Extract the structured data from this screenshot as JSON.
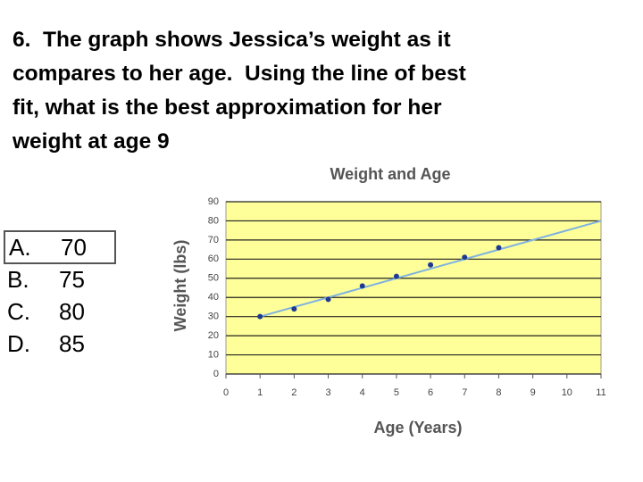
{
  "question_lines": [
    "6.  The graph shows Jessica’s weight as it",
    "compares to her age.  Using the line of best",
    "fit, what is the best approximation for her",
    "weight at age 9"
  ],
  "options": [
    {
      "letter": "A.",
      "text": "70"
    },
    {
      "letter": "B.",
      "text": "75"
    },
    {
      "letter": "C.",
      "text": "80"
    },
    {
      "letter": "D.",
      "text": "85"
    }
  ],
  "chart_data": {
    "type": "scatter",
    "title": "Weight and Age",
    "x_label": "Age (Years)",
    "y_label": "Weight (lbs)",
    "points": {
      "x": [
        1,
        2,
        3,
        4,
        5,
        6,
        7,
        8
      ],
      "values": [
        30,
        34,
        39,
        46,
        51,
        57,
        61,
        66
      ],
      "color": "#1f3a93"
    },
    "fit_line": {
      "x": [
        1,
        11
      ],
      "values": [
        30,
        80
      ],
      "color": "#7fb2e0"
    },
    "xlim": [
      0,
      11
    ],
    "ylim": [
      0,
      90
    ],
    "xticks": [
      0,
      1,
      2,
      3,
      4,
      5,
      6,
      7,
      8,
      9,
      10,
      11
    ],
    "yticks": [
      0,
      10,
      20,
      30,
      40,
      50,
      60,
      70,
      80,
      90
    ],
    "grid": true,
    "background": "#ffff99"
  }
}
